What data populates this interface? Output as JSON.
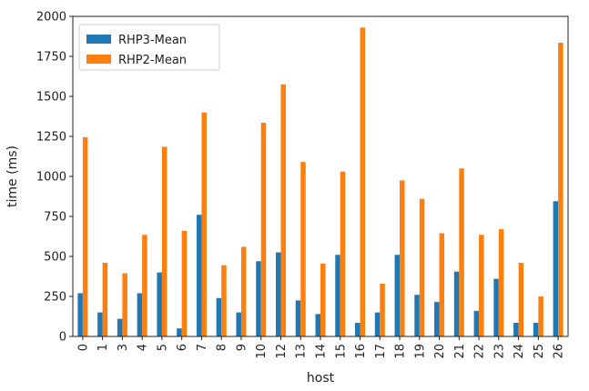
{
  "chart_data": {
    "type": "bar",
    "xlabel": "host",
    "ylabel": "time (ms)",
    "ylim": [
      0,
      2000
    ],
    "yticks": [
      "0",
      "250",
      "500",
      "750",
      "1000",
      "1250",
      "1500",
      "1750",
      "2000"
    ],
    "categories": [
      "0",
      "1",
      "3",
      "4",
      "5",
      "6",
      "7",
      "8",
      "9",
      "10",
      "12",
      "13",
      "14",
      "15",
      "16",
      "17",
      "18",
      "19",
      "20",
      "21",
      "22",
      "23",
      "24",
      "25",
      "26"
    ],
    "series": [
      {
        "name": "RHP3-Mean",
        "color": "#1f77b4",
        "values": [
          270,
          150,
          110,
          270,
          400,
          50,
          760,
          240,
          150,
          470,
          525,
          225,
          140,
          510,
          85,
          150,
          510,
          260,
          215,
          405,
          160,
          360,
          85,
          85,
          845
        ]
      },
      {
        "name": "RHP2-Mean",
        "color": "#ff7f0e",
        "values": [
          1245,
          460,
          395,
          635,
          1185,
          660,
          1400,
          445,
          560,
          1335,
          1575,
          1090,
          455,
          1030,
          1930,
          330,
          975,
          860,
          645,
          1050,
          635,
          670,
          460,
          250,
          1835
        ]
      }
    ],
    "legend_position": "upper-left",
    "grid": false
  }
}
